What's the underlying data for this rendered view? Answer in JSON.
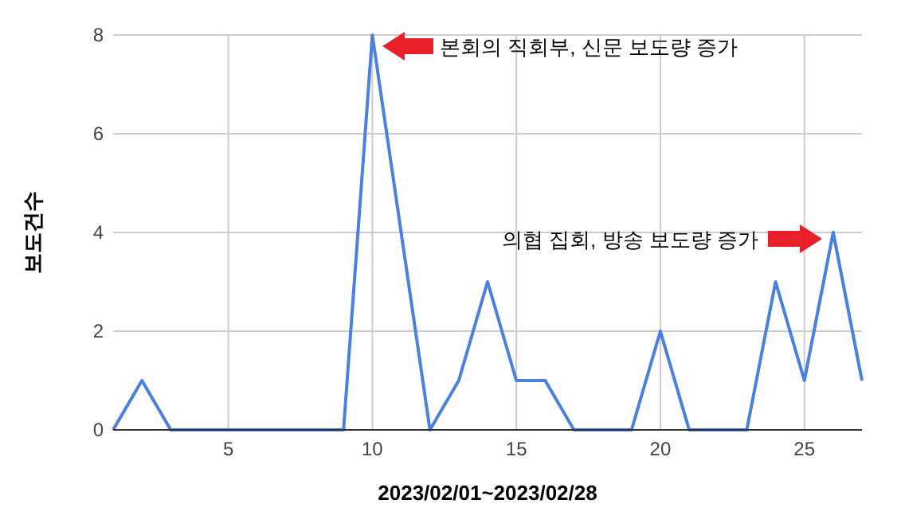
{
  "chart_data": {
    "type": "line",
    "xlabel": "2023/02/01~2023/02/28",
    "ylabel": "보도건수",
    "x": [
      1,
      2,
      3,
      4,
      5,
      6,
      7,
      8,
      9,
      10,
      11,
      12,
      13,
      14,
      15,
      16,
      17,
      18,
      19,
      20,
      21,
      22,
      23,
      24,
      25,
      26,
      27
    ],
    "series": [
      {
        "color": "#4a80e0",
        "values": [
          0,
          1,
          0,
          0,
          0,
          0,
          0,
          0,
          0,
          8,
          4,
          0,
          1,
          3,
          1,
          1,
          0,
          0,
          0,
          2,
          0,
          0,
          0,
          3,
          1,
          4,
          1
        ]
      }
    ],
    "xlim": [
      1,
      27
    ],
    "xticks": [
      5,
      10,
      15,
      20,
      25
    ],
    "ylim": [
      0,
      8
    ],
    "yticks": [
      0,
      2,
      4,
      6,
      8
    ],
    "grid": true,
    "annotations": [
      "본회의 직회부, 신문 보도량 증가",
      "의협 집회, 방송 보도량 증가"
    ]
  }
}
